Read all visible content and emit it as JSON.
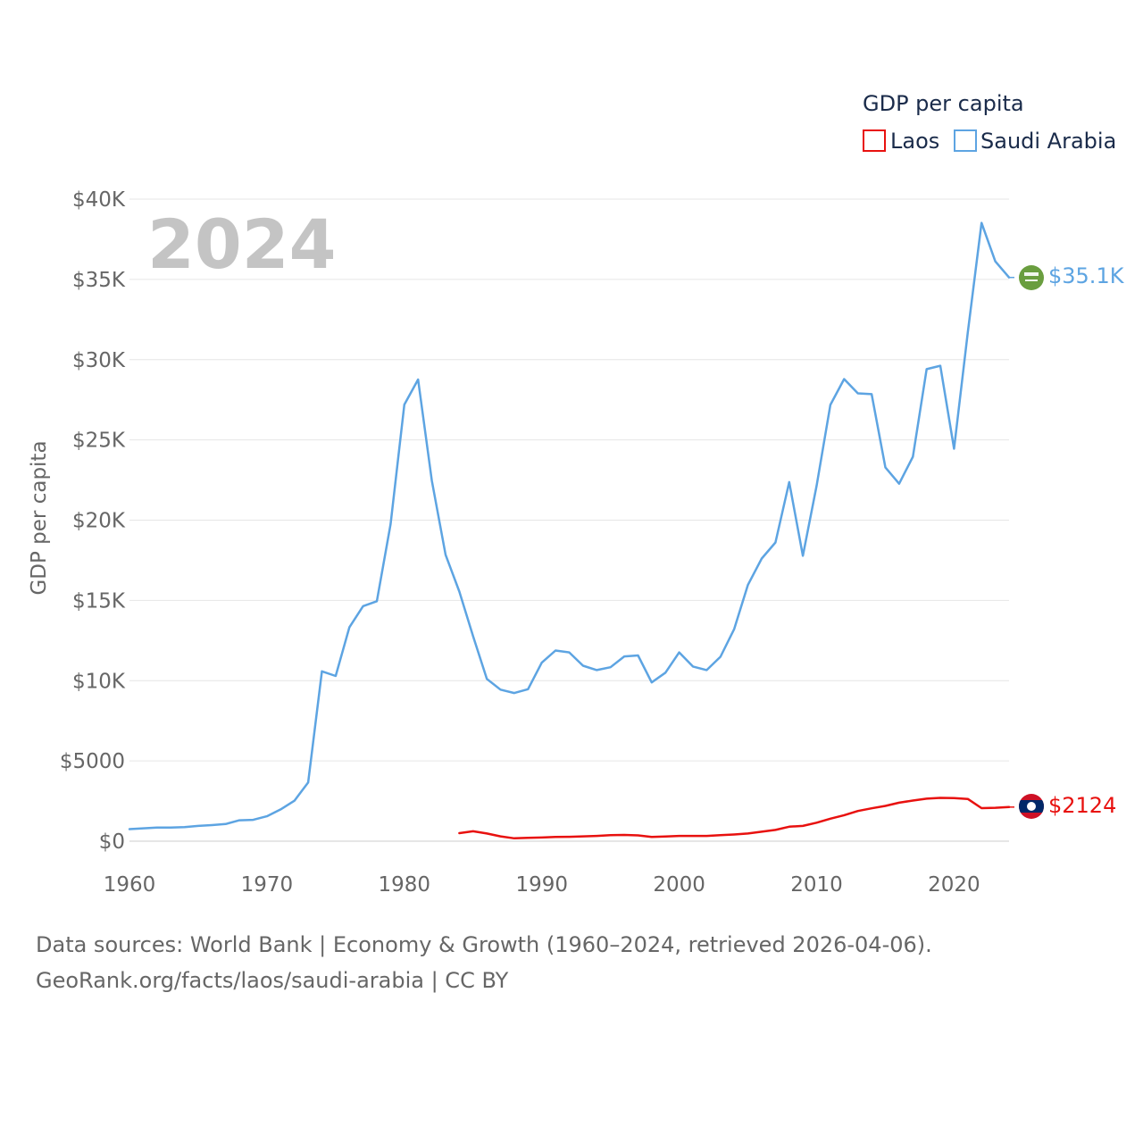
{
  "colors": {
    "laos": "#e8110f",
    "saudi": "#5da4e2",
    "grid": "#e6e6e6",
    "axis": "#cccccc"
  },
  "footer": {
    "line1": "Data sources: World Bank | Economy & Growth (1960–2024, retrieved 2026-04-06).",
    "line2": "GeoRank.org/facts/laos/saudi-arabia | CC BY"
  },
  "chart_data": {
    "type": "line",
    "title": "",
    "year_label": "2024",
    "xlabel": "",
    "ylabel": "GDP per capita",
    "xlim": [
      1960,
      2024
    ],
    "ylim": [
      0,
      40000
    ],
    "xticks": [
      1960,
      1970,
      1980,
      1990,
      2000,
      2010,
      2020
    ],
    "yticks": [
      0,
      5000,
      10000,
      15000,
      20000,
      25000,
      30000,
      35000,
      40000
    ],
    "ytick_labels": [
      "$0",
      "$5000",
      "$10K",
      "$15K",
      "$20K",
      "$25K",
      "$30K",
      "$35K",
      "$40K"
    ],
    "grid": true,
    "legend": {
      "title": "GDP per capita",
      "position": "top-right",
      "entries": [
        "Laos",
        "Saudi Arabia"
      ]
    },
    "series": [
      {
        "name": "Laos",
        "color": "#e8110f",
        "end_label": "$2124",
        "x": [
          1984,
          1985,
          1986,
          1987,
          1988,
          1989,
          1990,
          1991,
          1992,
          1993,
          1994,
          1995,
          1996,
          1997,
          1998,
          1999,
          2000,
          2001,
          2002,
          2003,
          2004,
          2005,
          2006,
          2007,
          2008,
          2009,
          2010,
          2011,
          2012,
          2013,
          2014,
          2015,
          2016,
          2017,
          2018,
          2019,
          2020,
          2021,
          2022,
          2023,
          2024
        ],
        "values": [
          500,
          620,
          480,
          300,
          180,
          210,
          230,
          260,
          270,
          300,
          330,
          370,
          390,
          360,
          260,
          290,
          330,
          330,
          330,
          370,
          420,
          480,
          590,
          700,
          900,
          950,
          1150,
          1400,
          1620,
          1880,
          2050,
          2200,
          2400,
          2530,
          2650,
          2700,
          2680,
          2630,
          2060,
          2080,
          2124
        ]
      },
      {
        "name": "Saudi Arabia",
        "color": "#5da4e2",
        "end_label": "$35.1K",
        "x": [
          1960,
          1961,
          1962,
          1963,
          1964,
          1965,
          1966,
          1967,
          1968,
          1969,
          1970,
          1971,
          1972,
          1973,
          1974,
          1975,
          1976,
          1977,
          1978,
          1979,
          1980,
          1981,
          1982,
          1983,
          1984,
          1985,
          1986,
          1987,
          1988,
          1989,
          1990,
          1991,
          1992,
          1993,
          1994,
          1995,
          1996,
          1997,
          1998,
          1999,
          2000,
          2001,
          2002,
          2003,
          2004,
          2005,
          2006,
          2007,
          2008,
          2009,
          2010,
          2011,
          2012,
          2013,
          2014,
          2015,
          2016,
          2017,
          2018,
          2019,
          2020,
          2021,
          2022,
          2023,
          2024
        ],
        "values": [
          750,
          800,
          850,
          850,
          880,
          950,
          1000,
          1070,
          1300,
          1330,
          1550,
          1980,
          2520,
          3660,
          10580,
          10290,
          13330,
          14640,
          14950,
          19750,
          27200,
          28760,
          22460,
          17840,
          15550,
          12770,
          10110,
          9440,
          9230,
          9470,
          11120,
          11880,
          11760,
          10930,
          10660,
          10840,
          11510,
          11570,
          9890,
          10500,
          11760,
          10880,
          10660,
          11490,
          13220,
          15970,
          17610,
          18610,
          22370,
          17780,
          22150,
          27180,
          28790,
          27900,
          27850,
          23290,
          22270,
          23950,
          29410,
          29620,
          24450,
          31700,
          38520,
          36120,
          35120
        ]
      }
    ]
  }
}
